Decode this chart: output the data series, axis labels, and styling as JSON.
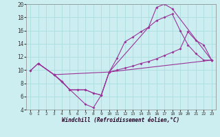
{
  "xlabel": "Windchill (Refroidissement éolien,°C)",
  "bg_color": "#cceef0",
  "grid_color": "#aadddd",
  "line_color": "#993399",
  "xlim": [
    -0.5,
    23.5
  ],
  "ylim": [
    4,
    20
  ],
  "xticks": [
    0,
    1,
    2,
    3,
    4,
    5,
    6,
    7,
    8,
    9,
    10,
    11,
    12,
    13,
    14,
    15,
    16,
    17,
    18,
    19,
    20,
    21,
    22,
    23
  ],
  "yticks": [
    4,
    6,
    8,
    10,
    12,
    14,
    16,
    18,
    20
  ],
  "series": [
    {
      "x": [
        0,
        1,
        3,
        10,
        15,
        16,
        17,
        18,
        23
      ],
      "y": [
        9.9,
        11.0,
        9.3,
        9.7,
        16.5,
        19.5,
        20.0,
        19.3,
        11.5
      ]
    },
    {
      "x": [
        0,
        1,
        3,
        7,
        8,
        9,
        10,
        11,
        12,
        13,
        14,
        15,
        16,
        17,
        18,
        19,
        20,
        21,
        22,
        23
      ],
      "y": [
        9.9,
        11.0,
        9.3,
        4.8,
        4.3,
        6.2,
        9.7,
        11.8,
        14.3,
        15.0,
        15.8,
        16.5,
        17.5,
        18.0,
        18.5,
        16.0,
        13.8,
        12.5,
        11.5,
        11.5
      ]
    },
    {
      "x": [
        1,
        3,
        4,
        5,
        6,
        7,
        8,
        9,
        10,
        23
      ],
      "y": [
        11.0,
        9.3,
        8.3,
        7.0,
        7.0,
        7.0,
        6.5,
        6.2,
        9.7,
        11.5
      ]
    },
    {
      "x": [
        1,
        3,
        4,
        5,
        6,
        7,
        8,
        9,
        10,
        11,
        12,
        13,
        14,
        15,
        16,
        17,
        18,
        19,
        20,
        21,
        22,
        23
      ],
      "y": [
        11.0,
        9.3,
        8.3,
        7.0,
        7.0,
        7.0,
        6.5,
        6.2,
        9.7,
        10.0,
        10.3,
        10.6,
        11.0,
        11.3,
        11.7,
        12.2,
        12.7,
        13.2,
        15.8,
        14.5,
        13.8,
        11.5
      ]
    }
  ]
}
